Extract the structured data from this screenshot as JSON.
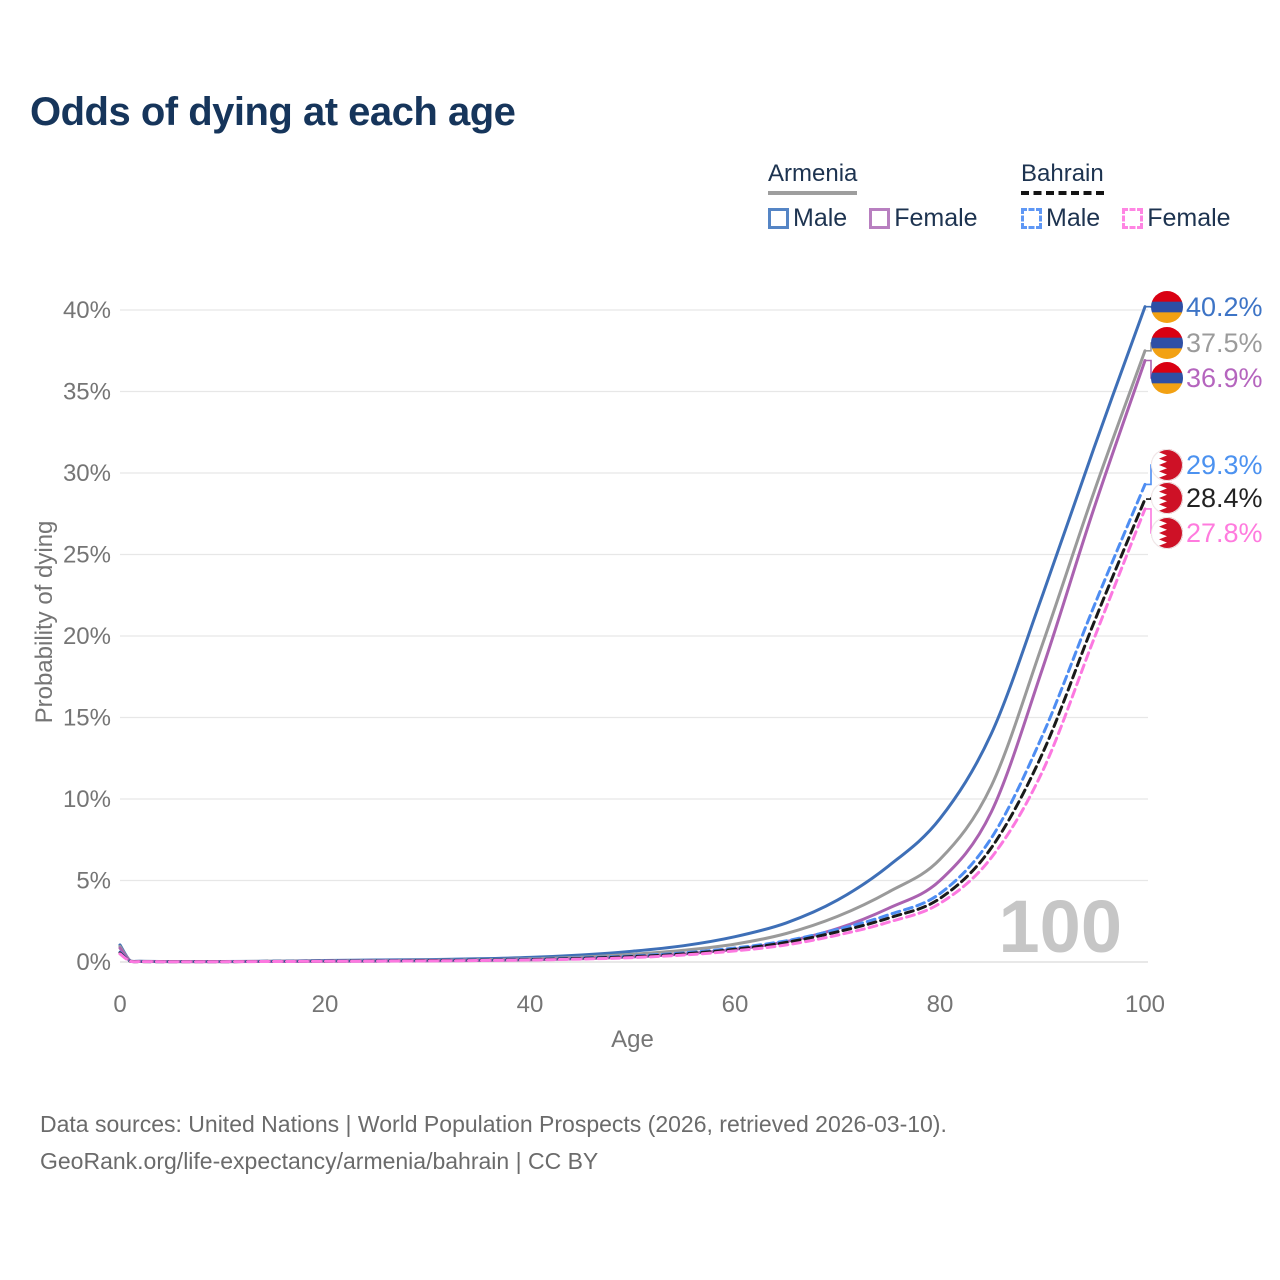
{
  "title": "Odds of dying at each age",
  "legend": {
    "armenia": {
      "name": "Armenia",
      "male": "Male",
      "female": "Female"
    },
    "bahrain": {
      "name": "Bahrain",
      "male": "Male",
      "female": "Female"
    }
  },
  "colors": {
    "title_text": "#16355b",
    "legend_text": "#1d3350",
    "axis_text": "#757575",
    "gridline": "#e7e7e7",
    "zero_line": "#d9d9d9",
    "watermark": "#c6c6c6",
    "armenia_flag": [
      "#D90012",
      "#2E4FA5",
      "#F2A113"
    ],
    "bahrain_flag_red": "#CE1126"
  },
  "chart_data": {
    "type": "line",
    "title": "Odds of dying at each age",
    "xlabel": "Age",
    "ylabel": "Probability of dying",
    "xlim": [
      0,
      100
    ],
    "ylim_percent": [
      0,
      40
    ],
    "grid": "horizontal",
    "watermark": "100",
    "x_ticks": [
      [
        0,
        "0"
      ],
      [
        20,
        "20"
      ],
      [
        40,
        "40"
      ],
      [
        60,
        "60"
      ],
      [
        80,
        "80"
      ],
      [
        100,
        "100"
      ]
    ],
    "y_ticks": [
      [
        0,
        "0%"
      ],
      [
        5,
        "5%"
      ],
      [
        10,
        "10%"
      ],
      [
        15,
        "15%"
      ],
      [
        20,
        "20%"
      ],
      [
        25,
        "25%"
      ],
      [
        30,
        "30%"
      ],
      [
        35,
        "35%"
      ],
      [
        40,
        "40%"
      ]
    ],
    "ages": [
      0,
      1,
      2,
      5,
      10,
      15,
      20,
      25,
      30,
      35,
      40,
      45,
      50,
      55,
      60,
      65,
      70,
      75,
      80,
      85,
      90,
      95,
      100
    ],
    "series": [
      {
        "name": "armenia-male",
        "country": "Armenia",
        "group": "Male",
        "color": "#3E6FB7",
        "dash": null,
        "flag": "am",
        "end_label": "40.2%",
        "end_label_color": "#3D74C6",
        "values": [
          1.05,
          0.07,
          0.04,
          0.03,
          0.03,
          0.05,
          0.09,
          0.12,
          0.15,
          0.2,
          0.28,
          0.43,
          0.66,
          1.0,
          1.55,
          2.4,
          3.8,
          5.9,
          8.8,
          14.0,
          22.5,
          31.5,
          40.2
        ]
      },
      {
        "name": "armenia-all",
        "country": "Armenia",
        "group": "All",
        "color": "#9A9A9A",
        "dash": null,
        "flag": "am",
        "end_label": "37.5%",
        "end_label_color": "#9B9B9B",
        "values": [
          0.95,
          0.06,
          0.035,
          0.027,
          0.027,
          0.04,
          0.065,
          0.085,
          0.11,
          0.14,
          0.2,
          0.3,
          0.47,
          0.72,
          1.1,
          1.75,
          2.8,
          4.3,
          6.3,
          10.8,
          19.5,
          28.8,
          37.5
        ]
      },
      {
        "name": "armenia-female",
        "country": "Armenia",
        "group": "Female",
        "color": "#AA62B0",
        "dash": null,
        "flag": "am",
        "end_label": "36.9%",
        "end_label_color": "#B565BE",
        "values": [
          0.85,
          0.05,
          0.03,
          0.022,
          0.022,
          0.03,
          0.04,
          0.05,
          0.065,
          0.09,
          0.13,
          0.2,
          0.31,
          0.49,
          0.78,
          1.25,
          2.05,
          3.3,
          5.0,
          9.2,
          18.0,
          27.8,
          36.9
        ]
      },
      {
        "name": "bahrain-male",
        "country": "Bahrain",
        "group": "Male",
        "color": "#4E8DF2",
        "dash": "8,5",
        "flag": "bh",
        "end_label": "29.3%",
        "end_label_color": "#4C92F0",
        "values": [
          0.6,
          0.045,
          0.03,
          0.025,
          0.025,
          0.04,
          0.06,
          0.08,
          0.1,
          0.13,
          0.17,
          0.25,
          0.37,
          0.56,
          0.86,
          1.3,
          2.0,
          2.9,
          4.2,
          7.6,
          13.9,
          21.8,
          29.3
        ]
      },
      {
        "name": "bahrain-all",
        "country": "Bahrain",
        "group": "All",
        "color": "#1A1A1A",
        "dash": "8,5",
        "flag": "bh",
        "end_label": "28.4%",
        "end_label_color": "#222222",
        "values": [
          0.55,
          0.04,
          0.027,
          0.022,
          0.022,
          0.035,
          0.05,
          0.07,
          0.09,
          0.11,
          0.15,
          0.22,
          0.33,
          0.5,
          0.78,
          1.2,
          1.85,
          2.7,
          3.9,
          7.0,
          12.8,
          20.8,
          28.4
        ]
      },
      {
        "name": "bahrain-female",
        "country": "Bahrain",
        "group": "Female",
        "color": "#FC78E0",
        "dash": "8,5",
        "flag": "bh",
        "end_label": "27.8%",
        "end_label_color": "#FF7BDE",
        "values": [
          0.5,
          0.035,
          0.024,
          0.02,
          0.02,
          0.03,
          0.04,
          0.055,
          0.07,
          0.09,
          0.12,
          0.18,
          0.27,
          0.43,
          0.68,
          1.05,
          1.65,
          2.45,
          3.6,
          6.4,
          11.7,
          19.8,
          27.8
        ]
      }
    ]
  },
  "footer": {
    "line1": "Data sources: United Nations | World Population Prospects (2026, retrieved 2026-03-10).",
    "line2": "GeoRank.org/life-expectancy/armenia/bahrain | CC BY"
  }
}
